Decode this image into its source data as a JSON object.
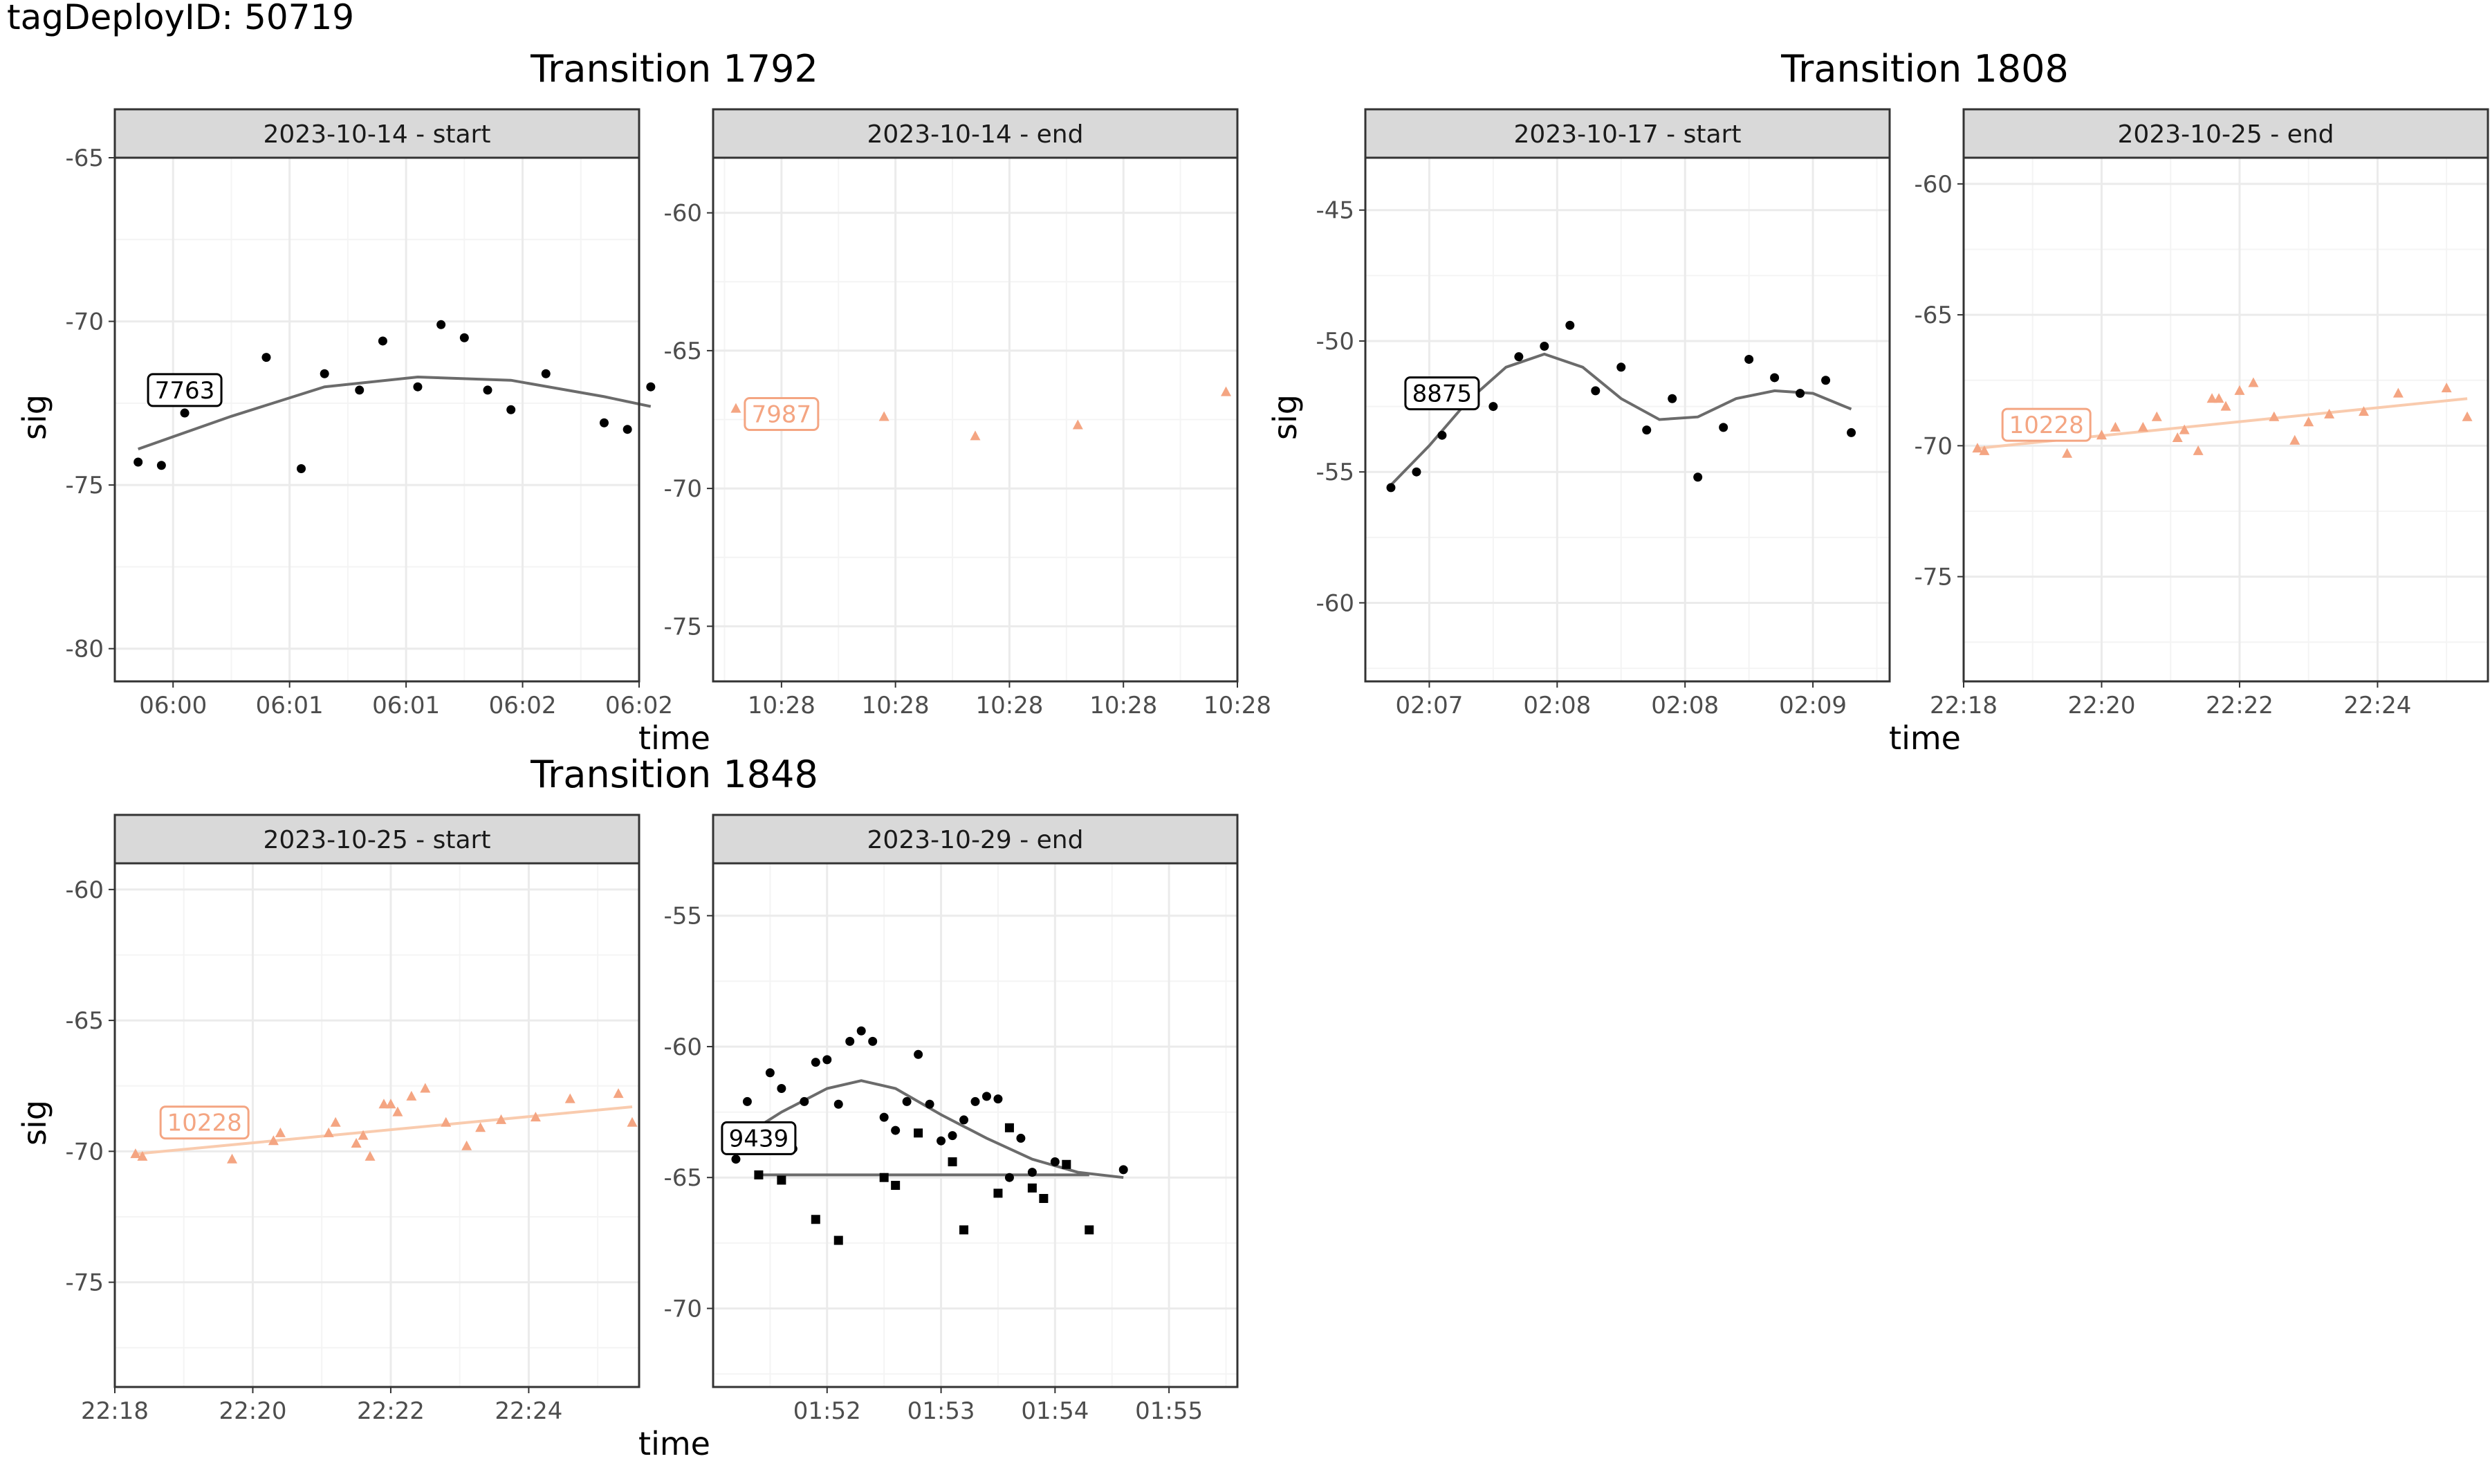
{
  "page_title": "tagDeployID: 50719",
  "x_axis_label": "time",
  "y_axis_label": "sig",
  "colors": {
    "panel_border": "#333333",
    "strip_fill": "#d9d9d9",
    "grid_major": "#ebebeb",
    "grid_minor": "#f4f4f4",
    "axis_text": "#4d4d4d",
    "black_points": "#000000",
    "black_line": "#6b6b6b",
    "orange_points": "#f4a582",
    "orange_line": "#f9cbae",
    "orange_label": "#f4a582"
  },
  "transitions": [
    {
      "title": "Transition 1792"
    },
    {
      "title": "Transition 1808"
    },
    {
      "title": "Transition 1848"
    }
  ],
  "chart_data": [
    {
      "type": "scatter",
      "transition": "Transition 1792",
      "strip": "2023-10-14 - start",
      "color_key": "black",
      "shape": "circle",
      "ylim": [
        -81,
        -65
      ],
      "yticks": [
        -65,
        -70,
        -75,
        -80
      ],
      "x_ticks": [
        "06:00",
        "06:01",
        "06:01",
        "06:02",
        "06:02"
      ],
      "x_tick_positions": [
        0.5,
        1.5,
        2.5,
        3.5,
        4.5
      ],
      "xlim": [
        0,
        4.5
      ],
      "points": [
        [
          0.2,
          -74.3
        ],
        [
          0.4,
          -74.4
        ],
        [
          0.6,
          -72.8
        ],
        [
          1.3,
          -71.1
        ],
        [
          1.6,
          -74.5
        ],
        [
          1.8,
          -71.6
        ],
        [
          2.1,
          -72.1
        ],
        [
          2.3,
          -70.6
        ],
        [
          2.6,
          -72.0
        ],
        [
          2.8,
          -70.1
        ],
        [
          3.0,
          -70.5
        ],
        [
          3.2,
          -72.1
        ],
        [
          3.4,
          -72.7
        ],
        [
          3.7,
          -71.6
        ],
        [
          4.2,
          -73.1
        ],
        [
          4.4,
          -73.3
        ],
        [
          4.6,
          -72.0
        ]
      ],
      "fit": [
        [
          0.2,
          -73.9
        ],
        [
          1.0,
          -72.9
        ],
        [
          1.8,
          -72.0
        ],
        [
          2.6,
          -71.7
        ],
        [
          3.4,
          -71.8
        ],
        [
          4.2,
          -72.3
        ],
        [
          4.6,
          -72.6
        ]
      ],
      "label": {
        "text": "7763",
        "x": 0.6,
        "y": -72.1
      }
    },
    {
      "type": "scatter",
      "transition": "Transition 1792",
      "strip": "2023-10-14 - end",
      "color_key": "orange",
      "shape": "triangle",
      "ylim": [
        -77,
        -58
      ],
      "yticks": [
        -60,
        -65,
        -70,
        -75
      ],
      "x_ticks": [
        "10:28",
        "10:28",
        "10:28",
        "10:28",
        "10:28"
      ],
      "x_tick_positions": [
        0.6,
        1.6,
        2.6,
        3.6,
        4.6
      ],
      "xlim": [
        0,
        4.6
      ],
      "points": [
        [
          0.2,
          -67.1
        ],
        [
          1.5,
          -67.4
        ],
        [
          2.3,
          -68.1
        ],
        [
          3.2,
          -67.7
        ],
        [
          4.5,
          -66.5
        ]
      ],
      "fit": [],
      "label": {
        "text": "7987",
        "x": 0.6,
        "y": -67.3
      }
    },
    {
      "type": "scatter",
      "transition": "Transition 1808",
      "strip": "2023-10-17 - start",
      "color_key": "black",
      "shape": "circle",
      "ylim": [
        -63,
        -43
      ],
      "yticks": [
        -45,
        -50,
        -55,
        -60
      ],
      "x_ticks": [
        "02:07",
        "02:08",
        "02:08",
        "02:09"
      ],
      "x_tick_positions": [
        0.5,
        1.5,
        2.5,
        3.5
      ],
      "xlim": [
        0,
        4.1
      ],
      "points": [
        [
          0.2,
          -55.6
        ],
        [
          0.4,
          -55.0
        ],
        [
          0.6,
          -53.6
        ],
        [
          1.0,
          -52.5
        ],
        [
          1.2,
          -50.6
        ],
        [
          1.4,
          -50.2
        ],
        [
          1.6,
          -49.4
        ],
        [
          1.8,
          -51.9
        ],
        [
          2.0,
          -51.0
        ],
        [
          2.2,
          -53.4
        ],
        [
          2.4,
          -52.2
        ],
        [
          2.6,
          -55.2
        ],
        [
          2.8,
          -53.3
        ],
        [
          3.0,
          -50.7
        ],
        [
          3.2,
          -51.4
        ],
        [
          3.4,
          -52.0
        ],
        [
          3.6,
          -51.5
        ],
        [
          3.8,
          -53.5
        ]
      ],
      "fit": [
        [
          0.2,
          -55.5
        ],
        [
          0.5,
          -54.0
        ],
        [
          0.8,
          -52.3
        ],
        [
          1.1,
          -51.0
        ],
        [
          1.4,
          -50.5
        ],
        [
          1.7,
          -51.0
        ],
        [
          2.0,
          -52.2
        ],
        [
          2.3,
          -53.0
        ],
        [
          2.6,
          -52.9
        ],
        [
          2.9,
          -52.2
        ],
        [
          3.2,
          -51.9
        ],
        [
          3.5,
          -52.0
        ],
        [
          3.8,
          -52.6
        ]
      ],
      "label": {
        "text": "8875",
        "x": 0.6,
        "y": -52.0
      }
    },
    {
      "type": "scatter",
      "transition": "Transition 1808",
      "strip": "2023-10-25 - end",
      "color_key": "orange",
      "shape": "triangle",
      "ylim": [
        -79,
        -59
      ],
      "yticks": [
        -60,
        -65,
        -70,
        -75
      ],
      "x_ticks": [
        "22:18",
        "22:20",
        "22:22",
        "22:24"
      ],
      "x_tick_positions": [
        0,
        2,
        4,
        6
      ],
      "xlim": [
        0,
        7.6
      ],
      "points": [
        [
          0.2,
          -70.1
        ],
        [
          0.3,
          -70.2
        ],
        [
          1.5,
          -70.3
        ],
        [
          2.0,
          -69.6
        ],
        [
          2.2,
          -69.3
        ],
        [
          2.6,
          -69.3
        ],
        [
          2.8,
          -68.9
        ],
        [
          3.1,
          -69.7
        ],
        [
          3.2,
          -69.4
        ],
        [
          3.4,
          -70.2
        ],
        [
          3.6,
          -68.2
        ],
        [
          3.7,
          -68.2
        ],
        [
          3.8,
          -68.5
        ],
        [
          4.0,
          -67.9
        ],
        [
          4.2,
          -67.6
        ],
        [
          4.5,
          -68.9
        ],
        [
          4.8,
          -69.8
        ],
        [
          5.0,
          -69.1
        ],
        [
          5.3,
          -68.8
        ],
        [
          5.8,
          -68.7
        ],
        [
          6.3,
          -68.0
        ],
        [
          7.0,
          -67.8
        ],
        [
          7.3,
          -68.9
        ]
      ],
      "fit": [
        [
          0.2,
          -70.1
        ],
        [
          7.3,
          -68.2
        ]
      ],
      "label": {
        "text": "10228",
        "x": 1.2,
        "y": -69.2
      }
    },
    {
      "type": "scatter",
      "transition": "Transition 1848",
      "strip": "2023-10-25 - start",
      "color_key": "orange",
      "shape": "triangle",
      "ylim": [
        -79,
        -59
      ],
      "yticks": [
        -60,
        -65,
        -70,
        -75
      ],
      "x_ticks": [
        "22:18",
        "22:20",
        "22:22",
        "22:24"
      ],
      "x_tick_positions": [
        0,
        2,
        4,
        6
      ],
      "xlim": [
        0,
        7.6
      ],
      "points": [
        [
          0.3,
          -70.1
        ],
        [
          0.4,
          -70.2
        ],
        [
          1.7,
          -70.3
        ],
        [
          2.3,
          -69.6
        ],
        [
          2.4,
          -69.3
        ],
        [
          3.1,
          -69.3
        ],
        [
          3.2,
          -68.9
        ],
        [
          3.5,
          -69.7
        ],
        [
          3.6,
          -69.4
        ],
        [
          3.7,
          -70.2
        ],
        [
          3.9,
          -68.2
        ],
        [
          4.0,
          -68.2
        ],
        [
          4.1,
          -68.5
        ],
        [
          4.3,
          -67.9
        ],
        [
          4.5,
          -67.6
        ],
        [
          4.8,
          -68.9
        ],
        [
          5.1,
          -69.8
        ],
        [
          5.3,
          -69.1
        ],
        [
          5.6,
          -68.8
        ],
        [
          6.1,
          -68.7
        ],
        [
          6.6,
          -68.0
        ],
        [
          7.3,
          -67.8
        ],
        [
          7.5,
          -68.9
        ]
      ],
      "fit": [
        [
          0.3,
          -70.1
        ],
        [
          7.5,
          -68.3
        ]
      ],
      "label": {
        "text": "10228",
        "x": 1.3,
        "y": -68.9
      }
    },
    {
      "type": "scatter",
      "transition": "Transition 1848",
      "strip": "2023-10-29 - end",
      "color_key": "black",
      "shape": "mixed",
      "ylim": [
        -73,
        -53
      ],
      "yticks": [
        -55,
        -60,
        -65,
        -70
      ],
      "x_ticks": [
        "01:52",
        "01:53",
        "01:54",
        "01:55"
      ],
      "x_tick_positions": [
        1,
        2,
        3,
        4
      ],
      "xlim": [
        0,
        4.6
      ],
      "points": [
        [
          0.2,
          -64.3
        ],
        [
          0.3,
          -62.1
        ],
        [
          0.5,
          -61.0
        ],
        [
          0.6,
          -61.6
        ],
        [
          0.7,
          -63.9
        ],
        [
          0.8,
          -62.1
        ],
        [
          0.9,
          -60.6
        ],
        [
          1.0,
          -60.5
        ],
        [
          1.1,
          -62.2
        ],
        [
          1.2,
          -59.8
        ],
        [
          1.3,
          -59.4
        ],
        [
          1.4,
          -59.8
        ],
        [
          1.5,
          -62.7
        ],
        [
          1.6,
          -63.2
        ],
        [
          1.7,
          -62.1
        ],
        [
          1.8,
          -60.3
        ],
        [
          1.9,
          -62.2
        ],
        [
          2.0,
          -63.6
        ],
        [
          2.1,
          -63.4
        ],
        [
          2.2,
          -62.8
        ],
        [
          2.3,
          -62.1
        ],
        [
          2.4,
          -61.9
        ],
        [
          2.5,
          -62.0
        ],
        [
          2.6,
          -65.0
        ],
        [
          2.7,
          -63.5
        ],
        [
          2.8,
          -64.8
        ],
        [
          3.0,
          -64.4
        ],
        [
          3.6,
          -64.7
        ]
      ],
      "squares": [
        [
          0.4,
          -64.9
        ],
        [
          0.6,
          -65.1
        ],
        [
          0.9,
          -66.6
        ],
        [
          1.1,
          -67.4
        ],
        [
          1.5,
          -65.0
        ],
        [
          1.6,
          -65.3
        ],
        [
          1.8,
          -63.3
        ],
        [
          2.1,
          -64.4
        ],
        [
          2.2,
          -67.0
        ],
        [
          2.5,
          -65.6
        ],
        [
          2.6,
          -63.1
        ],
        [
          2.8,
          -65.4
        ],
        [
          2.9,
          -65.8
        ],
        [
          3.1,
          -64.5
        ],
        [
          3.3,
          -67.0
        ]
      ],
      "fit": [
        [
          0.2,
          -63.6
        ],
        [
          0.6,
          -62.5
        ],
        [
          1.0,
          -61.6
        ],
        [
          1.3,
          -61.3
        ],
        [
          1.6,
          -61.6
        ],
        [
          2.0,
          -62.6
        ],
        [
          2.4,
          -63.5
        ],
        [
          2.8,
          -64.3
        ],
        [
          3.2,
          -64.8
        ],
        [
          3.6,
          -65.0
        ]
      ],
      "fit2": [
        [
          0.4,
          -64.9
        ],
        [
          3.3,
          -64.9
        ]
      ],
      "label": {
        "text": "9439",
        "x": 0.4,
        "y": -63.5
      }
    }
  ]
}
